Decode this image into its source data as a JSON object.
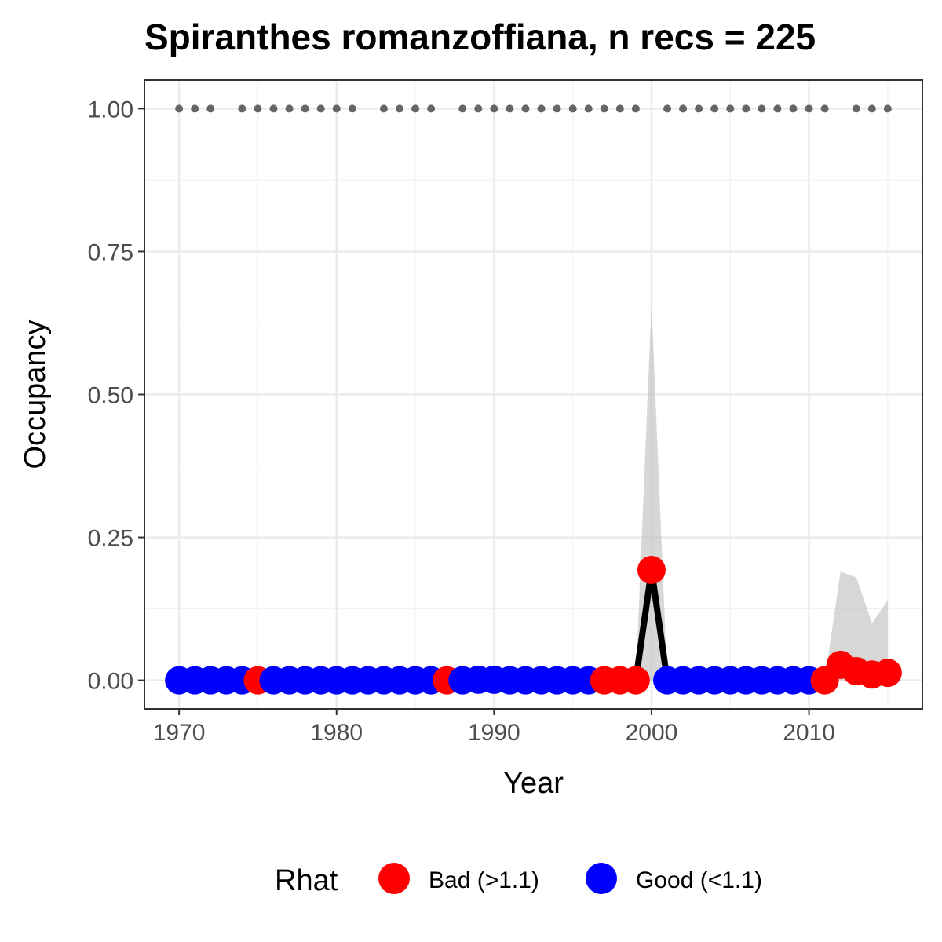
{
  "chart_data": {
    "type": "line",
    "title": "Spiranthes romanzoffiana, n recs = 225",
    "xlabel": "Year",
    "ylabel": "Occupancy",
    "xlim": [
      1967.8,
      2017.2
    ],
    "ylim": [
      -0.05,
      1.05
    ],
    "x_ticks": [
      1970,
      1980,
      1990,
      2000,
      2010
    ],
    "x_tick_labels": [
      "1970",
      "1980",
      "1990",
      "2000",
      "2010"
    ],
    "y_ticks": [
      0,
      0.25,
      0.5,
      0.75,
      1.0
    ],
    "y_tick_labels": [
      "0.00",
      "0.25",
      "0.50",
      "0.75",
      "1.00"
    ],
    "grid": true,
    "legend": {
      "title": "Rhat",
      "position": "bottom",
      "entries": [
        {
          "label": "Bad (>1.1)",
          "color": "#ff0000"
        },
        {
          "label": "Good (<1.1)",
          "color": "#0000ff"
        }
      ]
    },
    "series": [
      {
        "name": "Occupancy",
        "line_color": "#000000",
        "x": [
          1970,
          1971,
          1972,
          1973,
          1974,
          1975,
          1976,
          1977,
          1978,
          1979,
          1980,
          1981,
          1982,
          1983,
          1984,
          1985,
          1986,
          1987,
          1988,
          1989,
          1990,
          1991,
          1992,
          1993,
          1994,
          1995,
          1996,
          1997,
          1998,
          1999,
          2000,
          2001,
          2002,
          2003,
          2004,
          2005,
          2006,
          2007,
          2008,
          2009,
          2010,
          2011,
          2012,
          2013,
          2014,
          2015
        ],
        "y": [
          0,
          0,
          0,
          0,
          0,
          0,
          0,
          0,
          0,
          0,
          0,
          0,
          0,
          0,
          0,
          0,
          0,
          0,
          0,
          0.001,
          0.001,
          0,
          0,
          0,
          0,
          0,
          0,
          0,
          0,
          0,
          0.193,
          0,
          0,
          0,
          0,
          0,
          0,
          0,
          0,
          0,
          0,
          0,
          0.027,
          0.016,
          0.01,
          0.013
        ],
        "rhat": [
          "Good",
          "Good",
          "Good",
          "Good",
          "Good",
          "Bad",
          "Good",
          "Good",
          "Good",
          "Good",
          "Good",
          "Good",
          "Good",
          "Good",
          "Good",
          "Good",
          "Good",
          "Bad",
          "Good",
          "Good",
          "Good",
          "Good",
          "Good",
          "Good",
          "Good",
          "Good",
          "Good",
          "Bad",
          "Bad",
          "Bad",
          "Bad",
          "Good",
          "Good",
          "Good",
          "Good",
          "Good",
          "Good",
          "Good",
          "Good",
          "Good",
          "Good",
          "Bad",
          "Bad",
          "Bad",
          "Bad",
          "Bad"
        ]
      }
    ],
    "credible_interval": {
      "color": "#bebebe",
      "x": [
        1999,
        2000,
        2001,
        2011,
        2012,
        2013,
        2014,
        2015
      ],
      "lower": [
        0,
        0,
        0,
        0,
        0,
        0,
        0,
        0
      ],
      "upper": [
        0,
        0.66,
        0,
        0,
        0.19,
        0.18,
        0.1,
        0.14
      ]
    },
    "records": {
      "color": "#666666",
      "y": 1.0,
      "years": [
        1970,
        1971,
        1972,
        1974,
        1975,
        1976,
        1977,
        1978,
        1979,
        1980,
        1981,
        1983,
        1984,
        1985,
        1986,
        1988,
        1989,
        1990,
        1991,
        1992,
        1993,
        1994,
        1995,
        1996,
        1997,
        1998,
        1999,
        2001,
        2002,
        2003,
        2004,
        2005,
        2006,
        2007,
        2008,
        2009,
        2010,
        2011,
        2013,
        2014,
        2015
      ]
    }
  }
}
